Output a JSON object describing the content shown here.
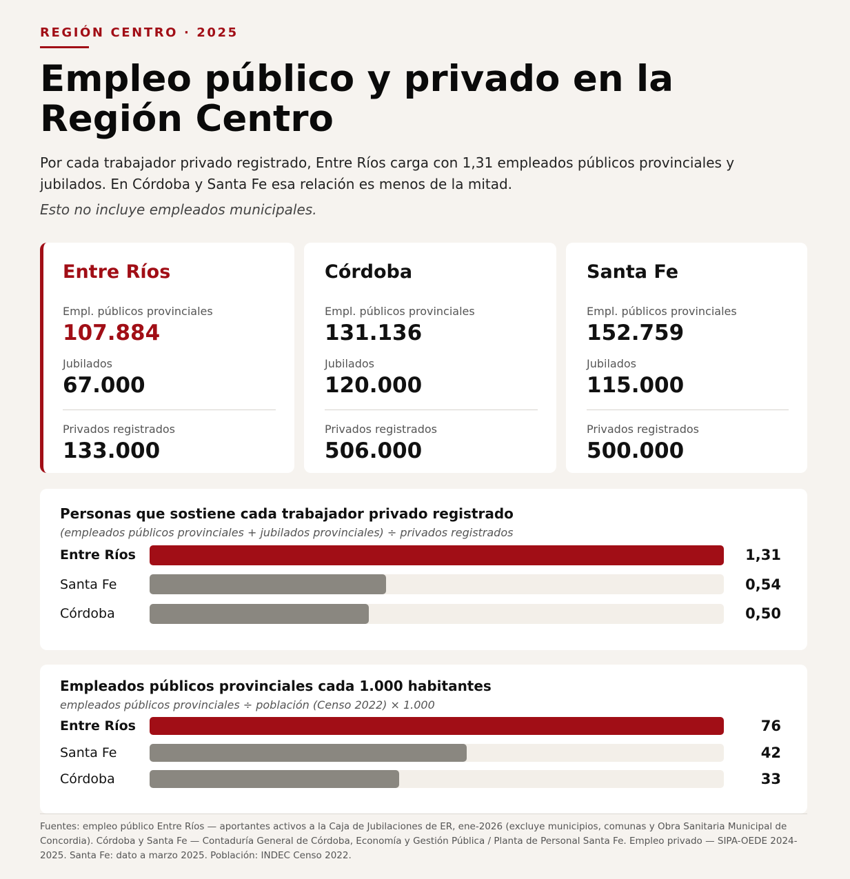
{
  "header": {
    "kicker": "REGIÓN CENTRO · 2025",
    "title": "Empleo público y privado en la Región Centro",
    "subtitle": "Por cada trabajador privado registrado, Entre Ríos carga con 1,31 empleados públicos provinciales y jubilados. En Córdoba y Santa Fe esa relación es menos de la mitad.",
    "note": "Esto no incluye empleados municipales."
  },
  "cards": [
    {
      "name": "Entre Ríos",
      "pub_label": "Empl. públicos provinciales",
      "pub_value": "107.884",
      "jub_label": "Jubilados",
      "jub_value": "67.000",
      "priv_label": "Privados registrados",
      "priv_value": "133.000"
    },
    {
      "name": "Córdoba",
      "pub_label": "Empl. públicos provinciales",
      "pub_value": "131.136",
      "jub_label": "Jubilados",
      "jub_value": "120.000",
      "priv_label": "Privados registrados",
      "priv_value": "506.000"
    },
    {
      "name": "Santa Fe",
      "pub_label": "Empl. públicos provinciales",
      "pub_value": "152.759",
      "jub_label": "Jubilados",
      "jub_value": "115.000",
      "priv_label": "Privados registrados",
      "priv_value": "500.000"
    }
  ],
  "colors": {
    "accent": "#a10e16",
    "bar_secondary": "#8a8780",
    "track": "#f3efe9"
  },
  "chart_data": [
    {
      "type": "bar",
      "orientation": "horizontal",
      "title": "Personas que sostiene cada trabajador privado registrado",
      "subtitle": "(empleados públicos provinciales + jubilados provinciales) ÷ privados registrados",
      "categories": [
        "Entre Ríos",
        "Santa Fe",
        "Córdoba"
      ],
      "values": [
        1.31,
        0.54,
        0.5
      ],
      "value_labels": [
        "1,31",
        "0,54",
        "0,50"
      ],
      "xlim": [
        0,
        1.31
      ],
      "highlight": "Entre Ríos",
      "grid": false
    },
    {
      "type": "bar",
      "orientation": "horizontal",
      "title": "Empleados públicos provinciales cada 1.000 habitantes",
      "subtitle": "empleados públicos provinciales ÷ población (Censo 2022) × 1.000",
      "categories": [
        "Entre Ríos",
        "Santa Fe",
        "Córdoba"
      ],
      "values": [
        76,
        42,
        33
      ],
      "value_labels": [
        "76",
        "42",
        "33"
      ],
      "xlim": [
        0,
        76
      ],
      "highlight": "Entre Ríos",
      "grid": false
    }
  ],
  "footer": {
    "sources": "Fuentes: empleo público Entre Ríos — aportantes activos a la Caja de Jubilaciones de ER, ene-2026 (excluye municipios, comunas y Obra Sanitaria Municipal de Concordia). Córdoba y Santa Fe — Contaduría General de Córdoba, Economía y Gestión Pública / Planta de Personal Santa Fe. Empleo privado — SIPA-OEDE 2024-2025. Santa Fe: dato a marzo 2025. Población: INDEC Censo 2022."
  }
}
